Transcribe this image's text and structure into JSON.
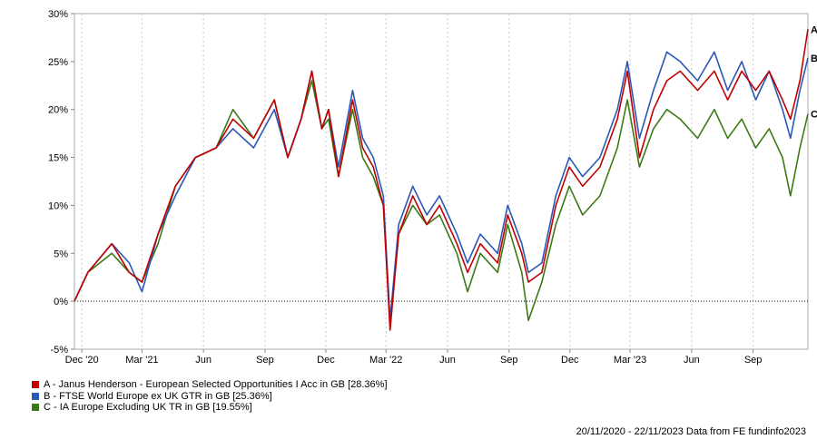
{
  "chart_data": {
    "type": "line",
    "ylim": [
      -5,
      30
    ],
    "y_ticks": [
      "30%",
      "25%",
      "20%",
      "15%",
      "10%",
      "5%",
      "0%",
      "-5%"
    ],
    "y_tick_values": [
      30,
      25,
      20,
      15,
      10,
      5,
      0,
      -5
    ],
    "x_range": [
      "2020-11-20",
      "2023-11-22"
    ],
    "x_ticks": [
      {
        "label": "Dec '20",
        "date": "2020-12-01"
      },
      {
        "label": "Mar '21",
        "date": "2021-03-01"
      },
      {
        "label": "Jun",
        "date": "2021-06-01"
      },
      {
        "label": "Sep",
        "date": "2021-09-01"
      },
      {
        "label": "Dec",
        "date": "2021-12-01"
      },
      {
        "label": "Mar '22",
        "date": "2022-03-01"
      },
      {
        "label": "Jun",
        "date": "2022-06-01"
      },
      {
        "label": "Sep",
        "date": "2022-09-01"
      },
      {
        "label": "Dec",
        "date": "2022-12-01"
      },
      {
        "label": "Mar '23",
        "date": "2023-03-01"
      },
      {
        "label": "Jun",
        "date": "2023-06-01"
      },
      {
        "label": "Sep",
        "date": "2023-09-01"
      }
    ],
    "grid": "vertical dashed lines at x ticks; dotted zero line",
    "series": [
      {
        "name": "A - Janus Henderson - European Selected Opportunities I Acc in GB [28.36%]",
        "end_label": "A",
        "color": "#c00000",
        "x": [
          "2020-11-20",
          "2020-12-10",
          "2021-01-15",
          "2021-02-10",
          "2021-03-01",
          "2021-03-25",
          "2021-04-20",
          "2021-05-20",
          "2021-06-20",
          "2021-07-15",
          "2021-08-15",
          "2021-09-15",
          "2021-10-05",
          "2021-10-25",
          "2021-11-10",
          "2021-11-25",
          "2021-12-05",
          "2021-12-20",
          "2022-01-10",
          "2022-01-25",
          "2022-02-10",
          "2022-02-25",
          "2022-03-07",
          "2022-03-20",
          "2022-04-10",
          "2022-05-01",
          "2022-05-20",
          "2022-06-15",
          "2022-07-01",
          "2022-07-20",
          "2022-08-15",
          "2022-08-30",
          "2022-09-20",
          "2022-09-30",
          "2022-10-20",
          "2022-11-10",
          "2022-11-30",
          "2022-12-20",
          "2023-01-15",
          "2023-02-10",
          "2023-02-25",
          "2023-03-15",
          "2023-04-05",
          "2023-04-25",
          "2023-05-15",
          "2023-06-10",
          "2023-07-05",
          "2023-07-25",
          "2023-08-15",
          "2023-09-05",
          "2023-09-25",
          "2023-10-15",
          "2023-10-27",
          "2023-11-10",
          "2023-11-22"
        ],
        "y": [
          0,
          3,
          6,
          3,
          2,
          7,
          12,
          15,
          16,
          19,
          17,
          21,
          15,
          19,
          24,
          18,
          20,
          13,
          21,
          16,
          14,
          10,
          -3,
          7,
          11,
          8,
          10,
          6,
          3,
          6,
          4,
          9,
          5,
          2,
          3,
          10,
          14,
          12,
          14,
          19,
          24,
          15,
          20,
          23,
          24,
          22,
          24,
          21,
          24,
          22,
          24,
          21,
          19,
          23,
          28.36
        ]
      },
      {
        "name": "B - FTSE World Europe ex UK GTR in GB [25.36%]",
        "end_label": "B",
        "color": "#2b57b8",
        "x": [
          "2020-11-20",
          "2020-12-10",
          "2021-01-15",
          "2021-02-10",
          "2021-03-01",
          "2021-03-25",
          "2021-04-20",
          "2021-05-20",
          "2021-06-20",
          "2021-07-15",
          "2021-08-15",
          "2021-09-15",
          "2021-10-05",
          "2021-10-25",
          "2021-11-10",
          "2021-11-25",
          "2021-12-05",
          "2021-12-20",
          "2022-01-10",
          "2022-01-25",
          "2022-02-10",
          "2022-02-25",
          "2022-03-07",
          "2022-03-20",
          "2022-04-10",
          "2022-05-01",
          "2022-05-20",
          "2022-06-15",
          "2022-07-01",
          "2022-07-20",
          "2022-08-15",
          "2022-08-30",
          "2022-09-20",
          "2022-09-30",
          "2022-10-20",
          "2022-11-10",
          "2022-11-30",
          "2022-12-20",
          "2023-01-15",
          "2023-02-10",
          "2023-02-25",
          "2023-03-15",
          "2023-04-05",
          "2023-04-25",
          "2023-05-15",
          "2023-06-10",
          "2023-07-05",
          "2023-07-25",
          "2023-08-15",
          "2023-09-05",
          "2023-09-25",
          "2023-10-15",
          "2023-10-27",
          "2023-11-10",
          "2023-11-22"
        ],
        "y": [
          0,
          3,
          6,
          4,
          1,
          7,
          11,
          15,
          16,
          18,
          16,
          20,
          15,
          19,
          24,
          18,
          20,
          14,
          22,
          17,
          15,
          11,
          -2,
          8,
          12,
          9,
          11,
          7,
          4,
          7,
          5,
          10,
          6,
          3,
          4,
          11,
          15,
          13,
          15,
          20,
          25,
          17,
          22,
          26,
          25,
          23,
          26,
          22,
          25,
          21,
          24,
          20,
          17,
          22,
          25.36
        ]
      },
      {
        "name": "C - IA Europe Excluding UK TR in GB [19.55%]",
        "end_label": "C",
        "color": "#3a7a16",
        "x": [
          "2020-11-20",
          "2020-12-10",
          "2021-01-15",
          "2021-02-10",
          "2021-03-01",
          "2021-03-25",
          "2021-04-20",
          "2021-05-20",
          "2021-06-20",
          "2021-07-15",
          "2021-08-15",
          "2021-09-15",
          "2021-10-05",
          "2021-10-25",
          "2021-11-10",
          "2021-11-25",
          "2021-12-05",
          "2021-12-20",
          "2022-01-10",
          "2022-01-25",
          "2022-02-10",
          "2022-02-25",
          "2022-03-07",
          "2022-03-20",
          "2022-04-10",
          "2022-05-01",
          "2022-05-20",
          "2022-06-15",
          "2022-07-01",
          "2022-07-20",
          "2022-08-15",
          "2022-08-30",
          "2022-09-20",
          "2022-09-30",
          "2022-10-20",
          "2022-11-10",
          "2022-11-30",
          "2022-12-20",
          "2023-01-15",
          "2023-02-10",
          "2023-02-25",
          "2023-03-15",
          "2023-04-05",
          "2023-04-25",
          "2023-05-15",
          "2023-06-10",
          "2023-07-05",
          "2023-07-25",
          "2023-08-15",
          "2023-09-05",
          "2023-09-25",
          "2023-10-15",
          "2023-10-27",
          "2023-11-10",
          "2023-11-22"
        ],
        "y": [
          0,
          3,
          5,
          3,
          2,
          6,
          12,
          15,
          16,
          20,
          17,
          21,
          15,
          19,
          23,
          18,
          19,
          13,
          20,
          15,
          13,
          10,
          -2,
          7,
          10,
          8,
          9,
          5,
          1,
          5,
          3,
          8,
          3,
          -2,
          2,
          8,
          12,
          9,
          11,
          16,
          21,
          14,
          18,
          20,
          19,
          17,
          20,
          17,
          19,
          16,
          18,
          15,
          11,
          16,
          19.55
        ]
      }
    ]
  },
  "footer_text": "20/11/2020 - 22/11/2023 Data from FE fundinfo2023"
}
